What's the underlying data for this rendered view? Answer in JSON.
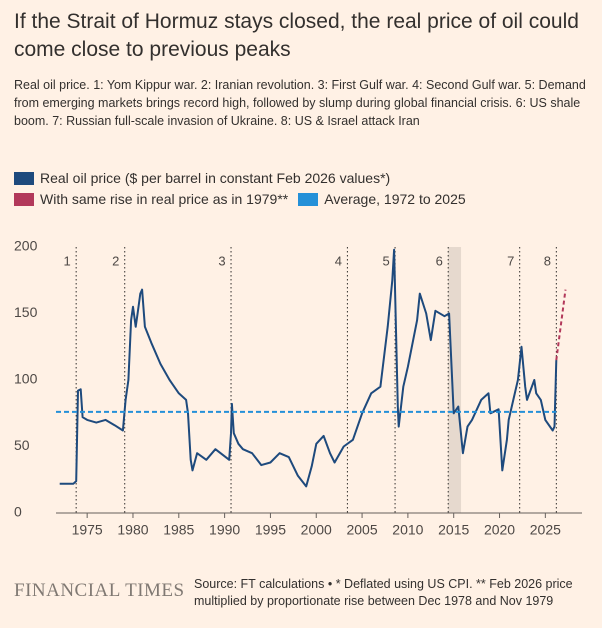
{
  "chart_data": {
    "type": "line",
    "title": "If the Strait of Hormuz stays closed, the real price of oil could come close to previous peaks",
    "subtitle": "Real oil price. 1: Yom Kippur war. 2: Iranian revolution. 3: First Gulf war. 4: Second Gulf war. 5: Demand from emerging markets brings record high, followed by slump during global financial crisis. 6: US shale boom. 7: Russian full-scale invasion of Ukraine. 8: US & Israel attack Iran",
    "source": "Source: FT calculations • * Deflated using US CPI. ** Feb 2026 price multiplied by proportionate rise between Dec 1978 and Nov 1979",
    "brand": "FINANCIAL TIMES",
    "xlim": [
      1971.6,
      2029
    ],
    "ylim": [
      0,
      200
    ],
    "xticks": [
      1975,
      1980,
      1985,
      1990,
      1995,
      2000,
      2005,
      2010,
      2015,
      2020,
      2025
    ],
    "yticks": [
      0,
      50,
      100,
      150,
      200
    ],
    "grid": false,
    "shaded_range": [
      2014.4,
      2015.8
    ],
    "events": [
      {
        "label": "1",
        "x": 1973.8
      },
      {
        "label": "2",
        "x": 1979.1
      },
      {
        "label": "3",
        "x": 1990.7
      },
      {
        "label": "4",
        "x": 2003.4
      },
      {
        "label": "5",
        "x": 2008.6
      },
      {
        "label": "6",
        "x": 2014.4
      },
      {
        "label": "7",
        "x": 2022.2
      },
      {
        "label": "8",
        "x": 2026.2
      }
    ],
    "series": [
      {
        "name": "Real oil price ($ per barrel in constant Feb 2026 values*)",
        "color": "#1e4a7d",
        "style": "solid",
        "x": [
          1972,
          1973.5,
          1973.8,
          1974.0,
          1974.3,
          1974.5,
          1975,
          1976,
          1977,
          1978,
          1978.9,
          1979.2,
          1979.5,
          1979.8,
          1980.0,
          1980.3,
          1980.5,
          1980.8,
          1981.0,
          1981.3,
          1982,
          1983,
          1984,
          1985,
          1985.8,
          1986.0,
          1986.3,
          1986.5,
          1987,
          1988,
          1989,
          1990.5,
          1990.7,
          1990.8,
          1991.0,
          1991.5,
          1992,
          1993,
          1994,
          1995,
          1996,
          1997,
          1998,
          1998.9,
          1999.5,
          2000,
          2000.8,
          2001.5,
          2002,
          2003,
          2004,
          2005,
          2006,
          2007,
          2007.8,
          2008.3,
          2008.5,
          2008.9,
          2009.0,
          2009.5,
          2010,
          2011,
          2011.3,
          2012,
          2012.5,
          2013,
          2014,
          2014.5,
          2015.0,
          2015.5,
          2016,
          2016.5,
          2017,
          2018,
          2018.8,
          2019,
          2019.9,
          2020.3,
          2020.8,
          2021,
          2021.5,
          2022.0,
          2022.4,
          2022.8,
          2023,
          2023.8,
          2024,
          2024.5,
          2025,
          2025.8,
          2026.0,
          2026.2
        ],
        "values": [
          22,
          22,
          24,
          92,
          93,
          72,
          70,
          68,
          70,
          66,
          62,
          85,
          100,
          145,
          155,
          140,
          150,
          165,
          168,
          140,
          128,
          112,
          100,
          90,
          85,
          75,
          40,
          32,
          45,
          40,
          48,
          40,
          60,
          82,
          60,
          52,
          48,
          45,
          36,
          38,
          45,
          42,
          28,
          20,
          35,
          52,
          58,
          45,
          38,
          50,
          55,
          75,
          90,
          95,
          140,
          175,
          198,
          80,
          65,
          95,
          110,
          145,
          165,
          150,
          130,
          152,
          148,
          150,
          75,
          80,
          45,
          65,
          70,
          85,
          90,
          75,
          78,
          32,
          55,
          70,
          85,
          100,
          125,
          95,
          85,
          100,
          90,
          85,
          70,
          62,
          65,
          115
        ]
      },
      {
        "name": "With same rise in real price as in 1979**",
        "color": "#b2385a",
        "style": "dashed",
        "x": [
          2026.2,
          2027.2
        ],
        "values": [
          115,
          168
        ]
      },
      {
        "name": "Average, 1972 to 2025",
        "color": "#2490d8",
        "style": "average",
        "value": 76
      }
    ]
  }
}
